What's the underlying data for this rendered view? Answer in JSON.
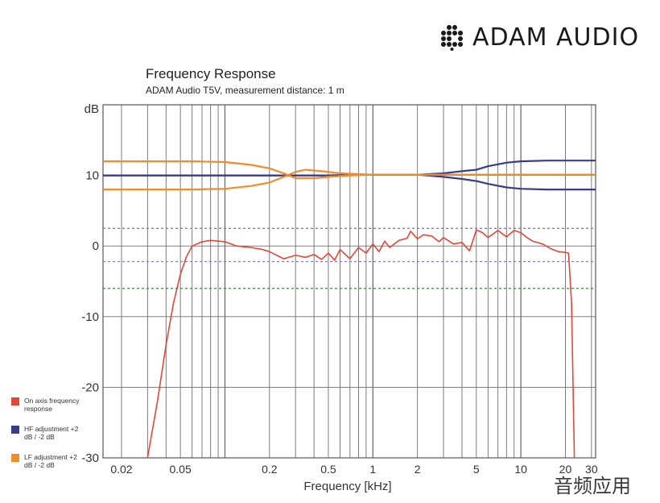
{
  "brand": {
    "name": "ADAM AUDIO",
    "logo_icon": "hexagon-dot-logo-icon"
  },
  "watermark": "音频应用",
  "chart_data": {
    "type": "line",
    "title": "Frequency Response",
    "subtitle": "ADAM Audio T5V, measurement distance: 1 m",
    "xlabel": "Frequency [kHz]",
    "ylabel": "dB",
    "xscale": "log",
    "xlim": [
      0.015,
      32
    ],
    "ylim": [
      -30,
      20
    ],
    "x_ticks": [
      0.02,
      0.05,
      0.2,
      0.5,
      1,
      2,
      5,
      10,
      20,
      30
    ],
    "x_tick_labels": [
      "0.02",
      "0.05",
      "0.2",
      "0.5",
      "1",
      "2",
      "5",
      "10",
      "20",
      "30"
    ],
    "y_ticks": [
      -30,
      -20,
      -10,
      0,
      10
    ],
    "y_tick_labels": [
      "-30",
      "-20",
      "-10",
      "0",
      "10"
    ],
    "grid": true,
    "reference_lines": [
      {
        "y": 2.5,
        "color": "#8a7bb0",
        "style": "dashed"
      },
      {
        "y": -2.2,
        "color": "#8a7bb0",
        "style": "dashed"
      },
      {
        "y": -6,
        "color": "#1f9a2a",
        "style": "dashed"
      }
    ],
    "series": [
      {
        "name": "On axis frequency response",
        "color": "#e2483a",
        "points": [
          [
            0.03,
            -30
          ],
          [
            0.035,
            -22
          ],
          [
            0.04,
            -14
          ],
          [
            0.045,
            -8
          ],
          [
            0.05,
            -4
          ],
          [
            0.055,
            -1.5
          ],
          [
            0.06,
            0
          ],
          [
            0.07,
            0.6
          ],
          [
            0.08,
            0.8
          ],
          [
            0.1,
            0.6
          ],
          [
            0.12,
            0
          ],
          [
            0.15,
            -0.2
          ],
          [
            0.18,
            -0.5
          ],
          [
            0.2,
            -0.8
          ],
          [
            0.25,
            -1.8
          ],
          [
            0.3,
            -1.3
          ],
          [
            0.35,
            -1.6
          ],
          [
            0.4,
            -1.2
          ],
          [
            0.45,
            -1.9
          ],
          [
            0.5,
            -1
          ],
          [
            0.55,
            -2
          ],
          [
            0.6,
            -0.5
          ],
          [
            0.7,
            -1.8
          ],
          [
            0.8,
            -0.2
          ],
          [
            0.9,
            -1
          ],
          [
            1,
            0.3
          ],
          [
            1.1,
            -0.8
          ],
          [
            1.2,
            0.7
          ],
          [
            1.3,
            -0.2
          ],
          [
            1.5,
            0.8
          ],
          [
            1.7,
            1.1
          ],
          [
            1.8,
            2.1
          ],
          [
            2,
            1
          ],
          [
            2.2,
            1.6
          ],
          [
            2.5,
            1.4
          ],
          [
            2.8,
            0.6
          ],
          [
            3,
            1.2
          ],
          [
            3.5,
            0.3
          ],
          [
            4,
            0.5
          ],
          [
            4.5,
            -0.7
          ],
          [
            5,
            2.3
          ],
          [
            5.5,
            1.9
          ],
          [
            6,
            1.2
          ],
          [
            7,
            2.2
          ],
          [
            8,
            1.3
          ],
          [
            9,
            2.2
          ],
          [
            10,
            1.9
          ],
          [
            11,
            1.2
          ],
          [
            12,
            0.7
          ],
          [
            14,
            0.3
          ],
          [
            16,
            -0.4
          ],
          [
            18,
            -0.8
          ],
          [
            20,
            -0.9
          ],
          [
            21,
            -1
          ],
          [
            22,
            -8
          ],
          [
            23,
            -30
          ]
        ]
      },
      {
        "name": "HF adjustment +2 dB / -2 dB",
        "color": "#3b3b8c",
        "curves": [
          [
            [
              0.015,
              10
            ],
            [
              0.5,
              10
            ],
            [
              1,
              10.1
            ],
            [
              2,
              10.1
            ],
            [
              3,
              10.3
            ],
            [
              4,
              10.6
            ],
            [
              5,
              10.8
            ],
            [
              6,
              11.3
            ],
            [
              8,
              11.8
            ],
            [
              10,
              12
            ],
            [
              15,
              12.1
            ],
            [
              32,
              12.1
            ]
          ],
          [
            [
              0.015,
              10
            ],
            [
              0.5,
              10
            ],
            [
              1,
              10.1
            ],
            [
              2,
              10.1
            ],
            [
              3,
              9.8
            ],
            [
              4,
              9.5
            ],
            [
              5,
              9.2
            ],
            [
              6,
              8.8
            ],
            [
              8,
              8.3
            ],
            [
              10,
              8.1
            ],
            [
              15,
              8
            ],
            [
              32,
              8
            ]
          ]
        ]
      },
      {
        "name": "LF adjustment +2 dB / -2 dB",
        "color": "#f08c2a",
        "curves": [
          [
            [
              0.015,
              12
            ],
            [
              0.06,
              12
            ],
            [
              0.1,
              11.9
            ],
            [
              0.15,
              11.5
            ],
            [
              0.2,
              11
            ],
            [
              0.25,
              10.3
            ],
            [
              0.3,
              9.6
            ],
            [
              0.4,
              9.6
            ],
            [
              0.5,
              9.8
            ],
            [
              0.7,
              10
            ],
            [
              1,
              10.1
            ],
            [
              32,
              10.1
            ]
          ],
          [
            [
              0.015,
              8
            ],
            [
              0.06,
              8
            ],
            [
              0.1,
              8.1
            ],
            [
              0.15,
              8.5
            ],
            [
              0.2,
              9
            ],
            [
              0.25,
              9.8
            ],
            [
              0.3,
              10.5
            ],
            [
              0.35,
              10.8
            ],
            [
              0.45,
              10.6
            ],
            [
              0.6,
              10.3
            ],
            [
              1,
              10.1
            ],
            [
              32,
              10.1
            ]
          ]
        ]
      }
    ],
    "legend": {
      "placement": "bottom-left",
      "entries": [
        {
          "label": "On axis frequency response",
          "color": "#e2483a"
        },
        {
          "label": "HF adjustment +2 dB / -2 dB",
          "color": "#3b3b8c"
        },
        {
          "label": "LF adjustment +2 dB / -2 dB",
          "color": "#f08c2a"
        }
      ]
    }
  }
}
